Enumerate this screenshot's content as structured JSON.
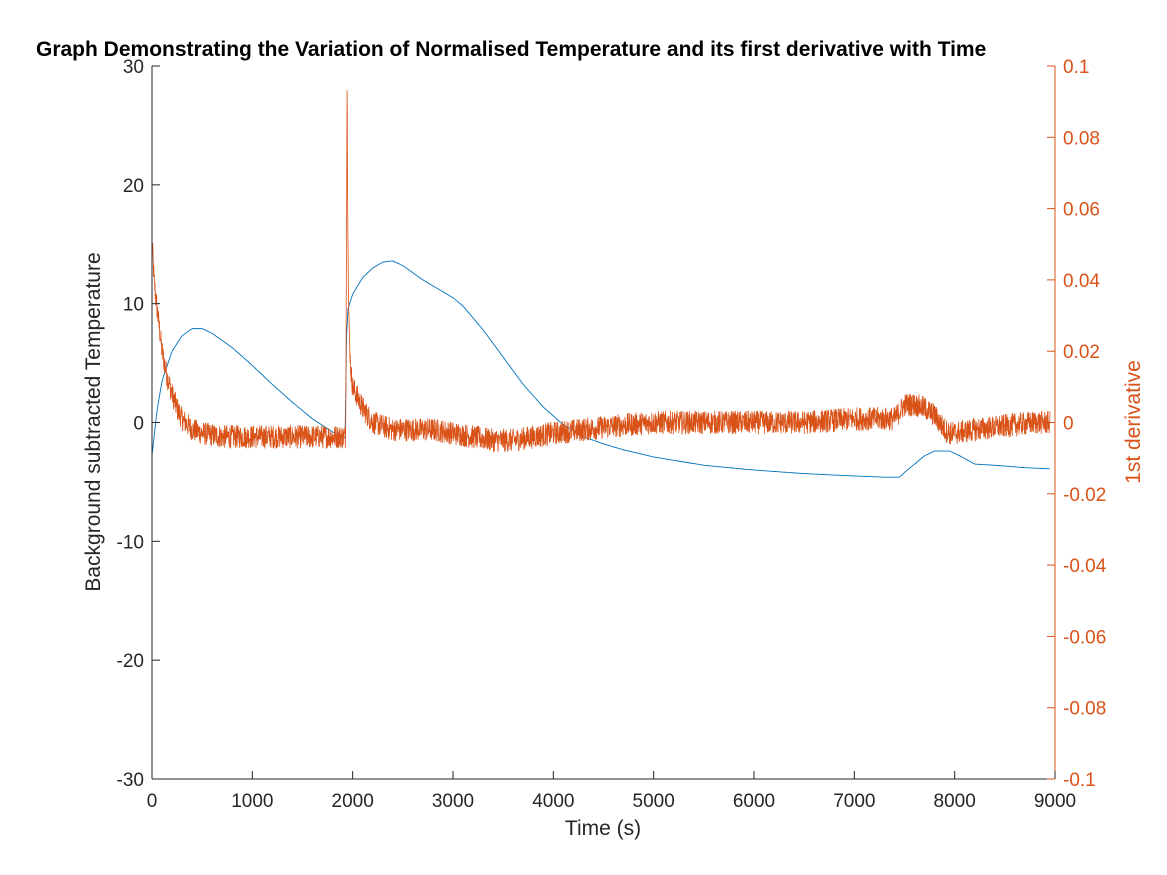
{
  "chart_data": {
    "type": "line",
    "title": "Graph Demonstrating the Variation of Normalised Temperature and its first derivative with Time",
    "xlabel": "Time (s)",
    "ylabel_left": "Background subtracted Temperature",
    "ylabel_right": "1st derivative",
    "xlim": [
      0,
      9000
    ],
    "ylim_left": [
      -30,
      30
    ],
    "ylim_right": [
      -0.1,
      0.1
    ],
    "x_ticks": [
      0,
      1000,
      2000,
      3000,
      4000,
      5000,
      6000,
      7000,
      8000,
      9000
    ],
    "x_tick_labels": [
      "0",
      "1000",
      "2000",
      "3000",
      "4000",
      "5000",
      "6000",
      "7000",
      "8000",
      "9000"
    ],
    "y_left_ticks": [
      -30,
      -20,
      -10,
      0,
      10,
      20,
      30
    ],
    "y_left_tick_labels": [
      "-30",
      "-20",
      "-10",
      "0",
      "10",
      "20",
      "30"
    ],
    "y_right_ticks": [
      -0.1,
      -0.08,
      -0.06,
      -0.04,
      -0.02,
      0,
      0.02,
      0.04,
      0.06,
      0.08,
      0.1
    ],
    "y_right_tick_labels": [
      "-0.1",
      "-0.08",
      "-0.06",
      "-0.04",
      "-0.02",
      "0",
      "0.02",
      "0.04",
      "0.06",
      "0.08",
      "0.1"
    ],
    "grid": false,
    "colors": {
      "left_series": "#0072BD",
      "right_series": "#D95319",
      "axis_left": "#262626",
      "axis_right": "#D95319"
    },
    "series": [
      {
        "name": "Background subtracted Temperature",
        "axis": "left",
        "x": [
          0,
          50,
          100,
          200,
          300,
          400,
          500,
          600,
          800,
          1000,
          1200,
          1400,
          1600,
          1800,
          1920,
          1930,
          1935,
          1950,
          2000,
          2100,
          2200,
          2300,
          2400,
          2500,
          2700,
          2900,
          3000,
          3100,
          3300,
          3500,
          3700,
          3900,
          4100,
          4300,
          4500,
          4700,
          5000,
          5500,
          6000,
          6500,
          7000,
          7300,
          7450,
          7500,
          7600,
          7700,
          7800,
          7950,
          8050,
          8200,
          8400,
          8700,
          8950
        ],
        "values": [
          -2.8,
          1.0,
          3.5,
          6.0,
          7.3,
          7.9,
          7.9,
          7.5,
          6.3,
          4.8,
          3.2,
          1.7,
          0.3,
          -0.8,
          -1.3,
          -1.3,
          6.5,
          9.5,
          10.8,
          12.2,
          13.0,
          13.5,
          13.6,
          13.2,
          12.0,
          11.0,
          10.5,
          9.8,
          7.8,
          5.5,
          3.2,
          1.3,
          -0.2,
          -1.2,
          -1.8,
          -2.3,
          -2.9,
          -3.6,
          -4.0,
          -4.3,
          -4.5,
          -4.6,
          -4.6,
          -4.2,
          -3.5,
          -2.8,
          -2.4,
          -2.4,
          -2.8,
          -3.5,
          -3.6,
          -3.8,
          -3.9
        ]
      },
      {
        "name": "1st derivative",
        "axis": "right",
        "noise_amplitude": 0.0025,
        "x": [
          0,
          10,
          20,
          50,
          80,
          100,
          150,
          200,
          250,
          300,
          400,
          500,
          700,
          900,
          1200,
          1500,
          1800,
          1930,
          1940,
          1945,
          1950,
          1960,
          1980,
          2000,
          2050,
          2100,
          2200,
          2400,
          2600,
          2800,
          3000,
          3200,
          3400,
          3600,
          3800,
          4000,
          4300,
          4600,
          5000,
          5500,
          6000,
          6500,
          7000,
          7400,
          7450,
          7500,
          7600,
          7700,
          7800,
          7850,
          7900,
          7950,
          8000,
          8200,
          8500,
          8800,
          8950
        ],
        "values": [
          0.05,
          0.046,
          0.04,
          0.032,
          0.025,
          0.02,
          0.013,
          0.008,
          0.004,
          0.001,
          -0.002,
          -0.003,
          -0.004,
          -0.004,
          -0.004,
          -0.004,
          -0.004,
          -0.004,
          0.06,
          0.1,
          0.06,
          0.03,
          0.015,
          0.01,
          0.007,
          0.004,
          0.0,
          -0.002,
          -0.002,
          -0.002,
          -0.003,
          -0.004,
          -0.005,
          -0.005,
          -0.004,
          -0.003,
          -0.002,
          -0.001,
          0.0,
          0.0,
          0.0,
          0.0,
          0.001,
          0.001,
          0.003,
          0.005,
          0.005,
          0.004,
          0.002,
          0.0,
          -0.002,
          -0.003,
          -0.003,
          -0.002,
          -0.001,
          0.0,
          0.0
        ]
      }
    ]
  }
}
